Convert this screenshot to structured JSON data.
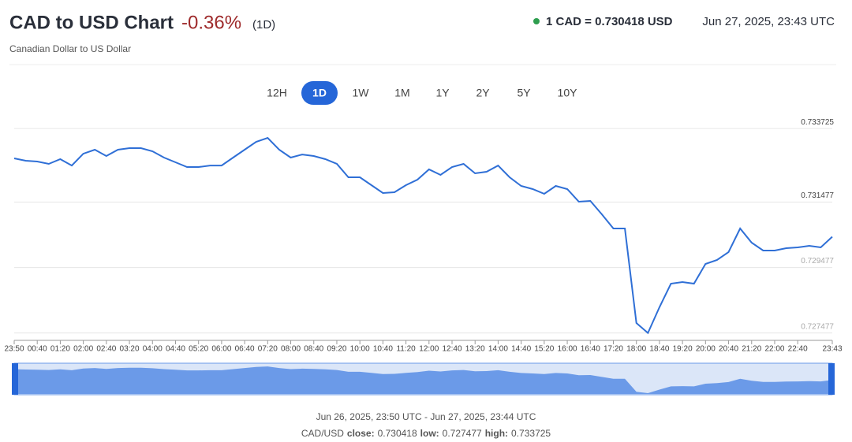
{
  "header": {
    "title": "CAD to USD Chart",
    "change": "-0.36%",
    "period": "(1D)",
    "subtitle": "Canadian Dollar to US Dollar",
    "rate": "1 CAD = 0.730418 USD",
    "timestamp": "Jun 27, 2025, 23:43 UTC"
  },
  "range_buttons": {
    "labels": [
      "12H",
      "1D",
      "1W",
      "1M",
      "1Y",
      "2Y",
      "5Y",
      "10Y"
    ],
    "selected": 1
  },
  "chart_data": {
    "type": "line",
    "color": "#2f6fd6",
    "categories": [
      "23:50",
      null,
      "00:40",
      null,
      "01:20",
      null,
      "02:00",
      null,
      "02:40",
      null,
      "03:20",
      null,
      "04:00",
      null,
      "04:40",
      null,
      "05:20",
      null,
      "06:00",
      null,
      "06:40",
      null,
      "07:20",
      null,
      "08:00",
      null,
      "08:40",
      null,
      "09:20",
      null,
      "10:00",
      null,
      "10:40",
      null,
      "11:20",
      null,
      "12:00",
      null,
      "12:40",
      null,
      "13:20",
      null,
      "14:00",
      null,
      "14:40",
      null,
      "15:20",
      null,
      "16:00",
      null,
      "16:40",
      null,
      "17:20",
      null,
      "18:00",
      null,
      "18:40",
      null,
      "19:20",
      null,
      "20:00",
      null,
      "20:40",
      null,
      "21:20",
      null,
      "22:00",
      null,
      "22:40",
      null,
      null,
      "23:43"
    ],
    "values": [
      0.732813,
      0.73274,
      0.732716,
      0.732644,
      0.732788,
      0.732595,
      0.732956,
      0.733077,
      0.732884,
      0.733077,
      0.733125,
      0.733125,
      0.733029,
      0.732836,
      0.732692,
      0.732547,
      0.732547,
      0.732595,
      0.732595,
      0.732836,
      0.733077,
      0.733318,
      0.733438,
      0.733077,
      0.732836,
      0.732932,
      0.732884,
      0.732788,
      0.732644,
      0.732234,
      0.732234,
      0.731994,
      0.731753,
      0.731777,
      0.731994,
      0.732162,
      0.732475,
      0.732307,
      0.732547,
      0.732644,
      0.732355,
      0.732403,
      0.732595,
      0.732234,
      0.73197,
      0.731873,
      0.731729,
      0.73197,
      0.731873,
      0.731488,
      0.731512,
      0.731103,
      0.73067,
      0.73067,
      0.727781,
      0.727477,
      0.728263,
      0.728985,
      0.729033,
      0.728985,
      0.729587,
      0.729707,
      0.729948,
      0.73067,
      0.730237,
      0.729996,
      0.729996,
      0.730068,
      0.730092,
      0.73014,
      0.730092,
      0.730418
    ],
    "ylim": [
      0.7273,
      0.7338
    ],
    "yticks": [
      0.727477,
      0.729477,
      0.731477,
      0.733725
    ],
    "grid": true
  },
  "footer": {
    "range": "Jun 26, 2025, 23:50 UTC - Jun 27, 2025, 23:44 UTC",
    "pair": "CAD/USD",
    "stats": [
      {
        "label": "close:",
        "value": 0.730418
      },
      {
        "label": "low:",
        "value": 0.727477
      },
      {
        "label": "high:",
        "value": 0.733725
      }
    ]
  }
}
